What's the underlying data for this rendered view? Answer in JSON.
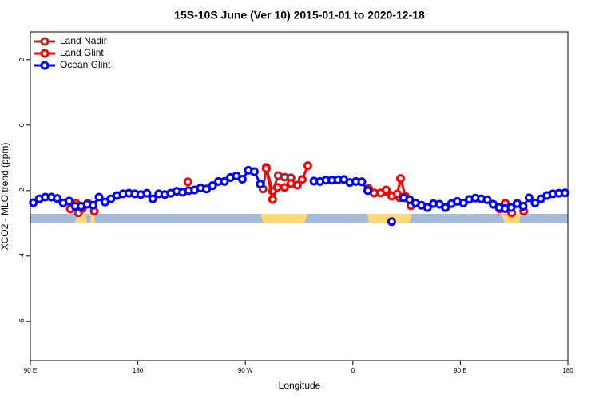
{
  "chart_data": {
    "type": "line",
    "title": "15S-10S June (Ver 10)   2015-01-01 to 2020-12-18",
    "x_label": "Longitude",
    "y_label": "XCO2 - MLO trend (ppm)",
    "xlim": [
      90,
      540
    ],
    "xticks": [
      {
        "value": 90,
        "label": "90 E"
      },
      {
        "value": 180,
        "label": "180"
      },
      {
        "value": 270,
        "label": "90 W"
      },
      {
        "value": 360,
        "label": "0"
      },
      {
        "value": 450,
        "label": "90 E"
      },
      {
        "value": 540,
        "label": "180"
      }
    ],
    "ylim": [
      -7.2,
      2.85
    ],
    "yticks": [
      2,
      0,
      -2,
      -4,
      -6
    ],
    "legend": "top-left",
    "series": [
      {
        "name": "Land Nadir",
        "color": "#a52a2a",
        "x": [
          130.2,
          133.5,
          null,
          284.8,
          287.5,
          292.8,
          297.5,
          302.8,
          308.2,
          null,
          373.1,
          377.8,
          392.5,
          399.2,
          null,
          487.6,
          492.9
        ],
        "values": [
          -2.68,
          -2.55,
          null,
          -1.95,
          -1.29,
          -2.02,
          -1.54,
          -1.59,
          -1.61,
          null,
          -1.93,
          -2.07,
          -2.15,
          -2.22,
          null,
          -2.39,
          -2.68
        ]
      },
      {
        "name": "Land Glint",
        "color": "#ff0000",
        "x": [
          123.5,
          128.2,
          133.5,
          138.2,
          143.5,
          null,
          221.9,
          null,
          287.5,
          292.8,
          296.8,
          302.8,
          308.2,
          313.6,
          317.6,
          322.3,
          null,
          373.1,
          377.8,
          383.2,
          387.9,
          392.5,
          397.2,
          399.9,
          403.9,
          408.6,
          null,
          482.9,
          487.6,
          492.9,
          497.6,
          503.0
        ],
        "values": [
          -2.56,
          -2.39,
          -2.54,
          -2.39,
          -2.63,
          null,
          -1.73,
          null,
          -1.32,
          -2.27,
          -1.9,
          -1.9,
          -1.78,
          -1.83,
          -1.66,
          -1.24,
          null,
          -1.95,
          -2.07,
          -2.07,
          -1.98,
          -2.17,
          -2.1,
          -1.63,
          -2.17,
          -2.46,
          null,
          -2.56,
          -2.39,
          -2.68,
          -2.39,
          -2.63
        ]
      },
      {
        "name": "Ocean Glint",
        "color": "#0000ff",
        "x": [
          92.5,
          97.5,
          102.5,
          107.5,
          112.5,
          117.5,
          122.5,
          127.5,
          132.5,
          137.5,
          142.5,
          147.5,
          152.5,
          157.5,
          162.5,
          167.5,
          172.5,
          177.5,
          182.5,
          187.5,
          192.5,
          197.5,
          202.5,
          207.5,
          212.5,
          217.5,
          222.5,
          227.5,
          232.5,
          237.5,
          242.5,
          247.5,
          252.5,
          257.5,
          262.5,
          267.5,
          272.5,
          277.5,
          282.5,
          null,
          327.5,
          332.5,
          337.5,
          342.5,
          347.5,
          352.5,
          357.5,
          362.5,
          367.5,
          372.5,
          null,
          392.5,
          null,
          402.5,
          407.5,
          412.5,
          417.5,
          422.5,
          427.5,
          432.5,
          437.5,
          442.5,
          447.5,
          452.5,
          457.5,
          462.5,
          467.5,
          472.5,
          477.5,
          482.5,
          487.5,
          492.5,
          497.5,
          502.5,
          507.5,
          512.5,
          517.5,
          522.5,
          527.5,
          532.5,
          537.5
        ],
        "values": [
          -2.37,
          -2.25,
          -2.2,
          -2.2,
          -2.24,
          -2.38,
          -2.32,
          -2.48,
          -2.48,
          -2.42,
          -2.45,
          -2.2,
          -2.35,
          -2.25,
          -2.15,
          -2.1,
          -2.08,
          -2.1,
          -2.12,
          -2.08,
          -2.25,
          -2.1,
          -2.12,
          -2.08,
          -2.02,
          -2.05,
          -2.0,
          -1.98,
          -1.92,
          -1.95,
          -1.85,
          -1.72,
          -1.72,
          -1.6,
          -1.55,
          -1.65,
          -1.38,
          -1.42,
          -1.8,
          null,
          -1.71,
          -1.72,
          -1.68,
          -1.68,
          -1.67,
          -1.66,
          -1.75,
          -1.72,
          -1.73,
          -2.0,
          null,
          -2.95,
          null,
          -2.22,
          -2.28,
          -2.38,
          -2.45,
          -2.52,
          -2.4,
          -2.42,
          -2.52,
          -2.4,
          -2.33,
          -2.38,
          -2.27,
          -2.23,
          -2.25,
          -2.28,
          -2.42,
          -2.52,
          -2.55,
          -2.52,
          -2.4,
          -2.48,
          -2.22,
          -2.38,
          -2.25,
          -2.15,
          -2.1,
          -2.08,
          -2.07
        ]
      }
    ]
  }
}
